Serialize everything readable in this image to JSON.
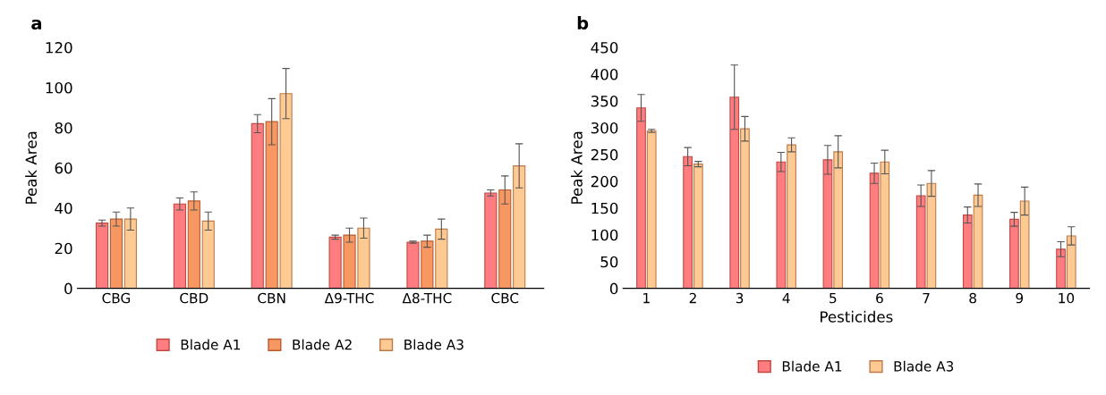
{
  "chart_data": [
    {
      "type": "bar",
      "title": "a",
      "ylabel": "Peak Area",
      "categories": [
        "CBG",
        "CBD",
        "CBN",
        "Δ9-THC",
        "Δ8-THC",
        "CBC"
      ],
      "ylim": [
        0,
        120
      ],
      "yticks": [
        0,
        20,
        40,
        60,
        80,
        100,
        120
      ],
      "grid": false,
      "legend": "bottom",
      "series": [
        {
          "name": "Blade A1",
          "color": "#ff7c80",
          "values": [
            32.5,
            42,
            82,
            25.5,
            23,
            47.5
          ],
          "errors": [
            1.5,
            3,
            4.5,
            1,
            0.5,
            1.5
          ]
        },
        {
          "name": "Blade A2",
          "color": "#f79862",
          "values": [
            34.5,
            43.5,
            83,
            26.5,
            23.5,
            49
          ],
          "errors": [
            3.5,
            4.5,
            11.5,
            3.5,
            3,
            7
          ]
        },
        {
          "name": "Blade A3",
          "color": "#fdca93",
          "values": [
            34.5,
            33.5,
            97,
            30,
            29.5,
            61
          ],
          "errors": [
            5.5,
            4.5,
            12.5,
            5,
            5,
            11
          ]
        }
      ]
    },
    {
      "type": "bar",
      "title": "b",
      "ylabel": "Peak Area",
      "xlabel": "Pesticides",
      "categories": [
        "1",
        "2",
        "3",
        "4",
        "5",
        "6",
        "7",
        "8",
        "9",
        "10"
      ],
      "ylim": [
        0,
        450
      ],
      "yticks": [
        0,
        50,
        100,
        150,
        200,
        250,
        300,
        350,
        400,
        450
      ],
      "grid": false,
      "legend": "bottom",
      "series": [
        {
          "name": "Blade A1",
          "color": "#ff7c80",
          "values": [
            337,
            246,
            357,
            236,
            240,
            215,
            173,
            137,
            129,
            73
          ],
          "errors": [
            25,
            17,
            60,
            18,
            27,
            19,
            20,
            15,
            13,
            14
          ]
        },
        {
          "name": "Blade A3",
          "color": "#fdca93",
          "values": [
            294,
            232,
            298,
            268,
            255,
            236,
            196,
            174,
            163,
            98
          ],
          "errors": [
            3,
            5,
            23,
            13,
            30,
            22,
            24,
            21,
            26,
            17
          ]
        }
      ]
    }
  ]
}
